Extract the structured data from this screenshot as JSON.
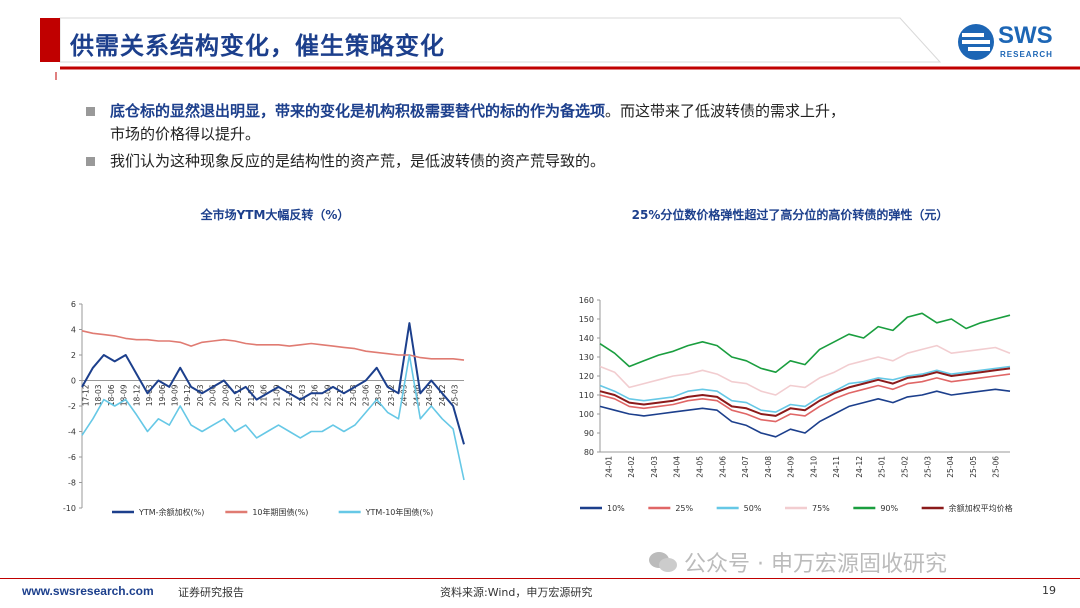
{
  "header": {
    "title": "供需关系结构变化，催生策略变化"
  },
  "logo": {
    "name": "SWS",
    "sub": "RESEARCH"
  },
  "bullets": [
    {
      "emph": "底仓标的显然退出明显，带来的变化是机构积极需要替代的标的作为备选项",
      "rest": "。而这带来了低波转债的需求上升，",
      "line2": "市场的价格得以提升。"
    },
    {
      "emph": "",
      "rest": "我们认为这种现象反应的是结构性的资产荒，是低波转债的资产荒导致的。",
      "line2": ""
    }
  ],
  "chart_data": [
    {
      "type": "line",
      "title": "全市场YTM大幅反转（%）",
      "ylim": [
        -10,
        6
      ],
      "yticks": [
        -10,
        -8,
        -6,
        -4,
        -2,
        0,
        2,
        4,
        6
      ],
      "xticks": [
        "17-12",
        "18-03",
        "18-06",
        "18-09",
        "18-12",
        "19-03",
        "19-06",
        "19-09",
        "19-12",
        "20-03",
        "20-06",
        "20-09",
        "20-12",
        "21-03",
        "21-06",
        "21-09",
        "21-12",
        "22-03",
        "22-06",
        "22-09",
        "22-12",
        "23-03",
        "23-06",
        "23-09",
        "23-12",
        "24-03",
        "24-06",
        "24-09",
        "24-12",
        "25-03"
      ],
      "colors": [
        "#1c3f8c",
        "#e07b72",
        "#66c8e6"
      ],
      "series": [
        {
          "name": "YTM-余额加权(%)",
          "values": [
            -0.5,
            1,
            2,
            1.5,
            2,
            0.5,
            -1,
            0,
            -0.5,
            1,
            -0.5,
            -1,
            -0.5,
            0,
            -1,
            -0.5,
            -1.5,
            -1,
            -0.5,
            -1,
            -1.5,
            -1,
            -1,
            -0.5,
            -1,
            -0.5,
            0,
            1,
            -0.5,
            -1,
            4.5,
            -1,
            0,
            -1,
            -2,
            -5
          ]
        },
        {
          "name": "10年期国债(%)",
          "values": [
            3.9,
            3.7,
            3.6,
            3.5,
            3.3,
            3.2,
            3.2,
            3.1,
            3.1,
            3.0,
            2.7,
            3.0,
            3.1,
            3.2,
            3.1,
            2.9,
            2.8,
            2.8,
            2.8,
            2.7,
            2.8,
            2.9,
            2.8,
            2.7,
            2.6,
            2.5,
            2.3,
            2.2,
            2.1,
            2.0,
            2.0,
            1.8,
            1.7,
            1.7,
            1.7,
            1.6
          ]
        },
        {
          "name": "YTM-10年国债(%)",
          "values": [
            -4.3,
            -3,
            -1.5,
            -2,
            -1.5,
            -2.7,
            -4,
            -3,
            -3.5,
            -2,
            -3.5,
            -4,
            -3.5,
            -3,
            -4,
            -3.5,
            -4.5,
            -4,
            -3.5,
            -4,
            -4.5,
            -4,
            -4,
            -3.5,
            -4,
            -3.5,
            -2.5,
            -1.5,
            -2.5,
            -3,
            2,
            -3,
            -2,
            -3,
            -3.8,
            -7.8
          ]
        }
      ]
    },
    {
      "type": "line",
      "title": "25%分位数价格弹性超过了高分位的高价转债的弹性（元）",
      "ylim": [
        80,
        160
      ],
      "yticks": [
        80,
        90,
        100,
        110,
        120,
        130,
        140,
        150,
        160
      ],
      "xticks": [
        "24-01",
        "24-02",
        "24-03",
        "24-04",
        "24-05",
        "24-06",
        "24-07",
        "24-08",
        "24-09",
        "24-10",
        "24-11",
        "24-12",
        "25-01",
        "25-02",
        "25-03",
        "25-04",
        "25-05",
        "25-06"
      ],
      "colors": [
        "#1c3f8c",
        "#e06666",
        "#66c8e6",
        "#f2cdd0",
        "#1a9e3f",
        "#8b1a1a"
      ],
      "series": [
        {
          "name": "10%",
          "values": [
            104,
            102,
            100,
            99,
            100,
            101,
            102,
            103,
            102,
            96,
            94,
            90,
            88,
            92,
            90,
            96,
            100,
            104,
            106,
            108,
            106,
            109,
            110,
            112,
            110,
            111,
            112,
            113,
            112
          ]
        },
        {
          "name": "25%",
          "values": [
            110,
            108,
            104,
            103,
            104,
            105,
            107,
            108,
            107,
            102,
            100,
            97,
            96,
            100,
            99,
            104,
            108,
            111,
            113,
            115,
            113,
            116,
            117,
            119,
            117,
            118,
            119,
            120,
            121
          ]
        },
        {
          "name": "50%",
          "values": [
            115,
            112,
            108,
            107,
            108,
            109,
            112,
            113,
            112,
            107,
            106,
            102,
            101,
            105,
            104,
            109,
            112,
            116,
            117,
            119,
            118,
            120,
            121,
            123,
            121,
            122,
            123,
            124,
            125
          ]
        },
        {
          "name": "75%",
          "values": [
            125,
            122,
            114,
            116,
            118,
            120,
            121,
            123,
            121,
            117,
            116,
            112,
            110,
            115,
            114,
            119,
            122,
            126,
            128,
            130,
            128,
            132,
            134,
            136,
            132,
            133,
            134,
            135,
            132
          ]
        },
        {
          "name": "90%",
          "values": [
            137,
            132,
            125,
            128,
            131,
            133,
            136,
            138,
            136,
            130,
            128,
            124,
            122,
            128,
            126,
            134,
            138,
            142,
            140,
            146,
            144,
            151,
            153,
            148,
            150,
            145,
            148,
            150,
            152
          ]
        },
        {
          "name": "余额加权平均价格",
          "values": [
            112,
            110,
            106,
            105,
            106,
            107,
            109,
            110,
            109,
            104,
            103,
            100,
            99,
            103,
            102,
            107,
            111,
            114,
            116,
            118,
            116,
            119,
            120,
            122,
            120,
            121,
            122,
            123,
            124
          ]
        }
      ]
    }
  ],
  "footer": {
    "url": "www.swsresearch.com",
    "doc_type": "证券研究报告",
    "source": "资料来源:Wind，申万宏源研究",
    "page": "19",
    "watermark": "公众号 · 申万宏源固收研究"
  }
}
